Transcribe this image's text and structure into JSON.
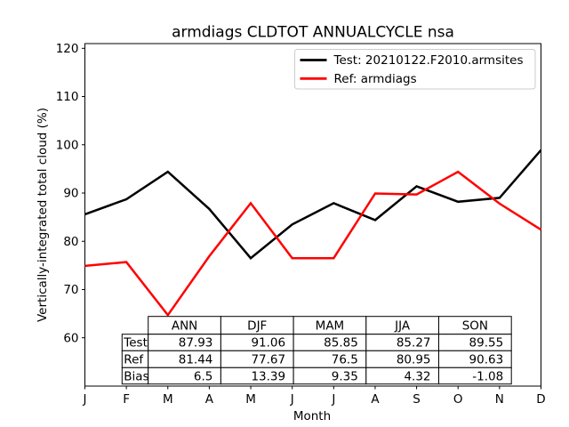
{
  "figure": {
    "title": "armdiags CLDTOT ANNUALCYCLE nsa",
    "xlabel": "Month",
    "ylabel": "Vertically-integrated total cloud (%)"
  },
  "legend": {
    "entries": [
      {
        "label": "Test: 20210122.F2010.armsites",
        "color": "#000000"
      },
      {
        "label": "Ref: armdiags",
        "color": "#ff0000"
      }
    ]
  },
  "chart_data": {
    "type": "line",
    "title": "armdiags CLDTOT ANNUALCYCLE nsa",
    "xlabel": "Month",
    "ylabel": "Vertically-integrated total cloud (%)",
    "x_tick_labels": [
      "J",
      "F",
      "M",
      "A",
      "M",
      "J",
      "J",
      "A",
      "S",
      "O",
      "N",
      "D"
    ],
    "y_ticks": [
      60,
      70,
      80,
      90,
      100,
      110,
      120
    ],
    "ylim": [
      50,
      121
    ],
    "xlim_months": [
      0,
      11
    ],
    "grid": false,
    "legend_position": "upper right",
    "series": [
      {
        "name": "Test: 20210122.F2010.armsites",
        "color": "#000000",
        "values": [
          85.6,
          88.7,
          94.4,
          86.7,
          76.5,
          83.5,
          87.9,
          84.4,
          91.4,
          88.2,
          89.0,
          98.9
        ]
      },
      {
        "name": "Ref: armdiags",
        "color": "#ff0000",
        "values": [
          74.9,
          75.7,
          64.7,
          76.9,
          87.9,
          76.5,
          76.5,
          89.9,
          89.7,
          94.4,
          87.8,
          82.4
        ]
      }
    ]
  },
  "stats_table": {
    "column_headers": [
      "ANN",
      "DJF",
      "MAM",
      "JJA",
      "SON"
    ],
    "rows": [
      {
        "label": "Test",
        "values": [
          "87.93",
          "91.06",
          "85.85",
          "85.27",
          "89.55"
        ]
      },
      {
        "label": "Ref",
        "values": [
          "81.44",
          "77.67",
          "76.5",
          "80.95",
          "90.63"
        ]
      },
      {
        "label": "Bias",
        "values": [
          "6.5",
          "13.39",
          "9.35",
          "4.32",
          "-1.08"
        ]
      }
    ]
  }
}
